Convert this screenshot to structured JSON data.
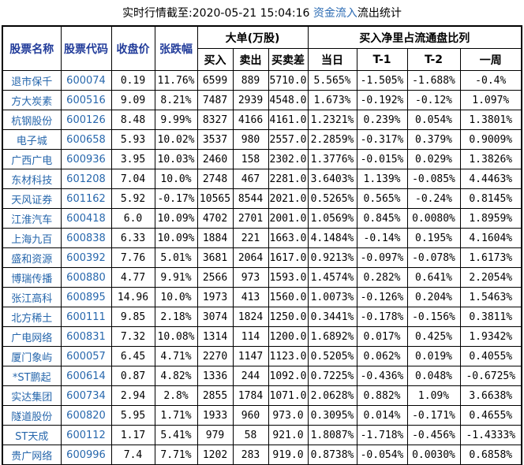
{
  "title": {
    "prefix": "实时行情截至:2020-05-21 15:04:16 ",
    "link": "资金流入",
    "suffix": "流出统计"
  },
  "headers": {
    "stock_name": "股票名称",
    "stock_code": "股票代码",
    "close_price": "收盘价",
    "change_pct": "张跌幅",
    "big_order_group": "大单(万股)",
    "buy": "买入",
    "sell": "卖出",
    "buy_sell_diff": "买卖差",
    "net_ratio_group": "买入净里占流通盘比列",
    "day": "当日",
    "t1": "T-1",
    "t2": "T-2",
    "week": "一周"
  },
  "colors": {
    "header_blue": "#223c9a",
    "cell_link_blue": "#2767ac",
    "title_link_blue": "#2e6db4",
    "border": "#000000",
    "background": "#ffffff"
  },
  "chart_data": {
    "type": "table",
    "title": "实时行情截至:2020-05-21 15:04:16 资金流入流出统计",
    "column_groups": [
      {
        "label": "大单(万股)",
        "columns": [
          "买入",
          "卖出",
          "买卖差"
        ]
      },
      {
        "label": "买入净里占流通盘比列",
        "columns": [
          "当日",
          "T-1",
          "T-2",
          "一周"
        ]
      }
    ],
    "columns": [
      "股票名称",
      "股票代码",
      "收盘价",
      "张跌幅",
      "买入",
      "卖出",
      "买卖差",
      "当日",
      "T-1",
      "T-2",
      "一周"
    ],
    "rows": [
      [
        "退市保千",
        "600074",
        "0.19",
        "11.76%",
        "6599",
        "889",
        "5710.0",
        "5.565%",
        "-1.505%",
        "-1.688%",
        "-0.4%"
      ],
      [
        "方大炭素",
        "600516",
        "9.09",
        "8.21%",
        "7487",
        "2939",
        "4548.0",
        "1.673%",
        "-0.192%",
        "-0.12%",
        "1.097%"
      ],
      [
        "杭钢股份",
        "600126",
        "8.48",
        "9.99%",
        "8327",
        "4166",
        "4161.0",
        "1.2321%",
        "0.239%",
        "0.054%",
        "1.3801%"
      ],
      [
        "电子城",
        "600658",
        "5.93",
        "10.02%",
        "3537",
        "980",
        "2557.0",
        "2.2859%",
        "-0.317%",
        "0.379%",
        "0.9009%"
      ],
      [
        "广西广电",
        "600936",
        "3.95",
        "10.03%",
        "2460",
        "158",
        "2302.0",
        "1.3776%",
        "-0.015%",
        "0.029%",
        "1.3826%"
      ],
      [
        "东材科技",
        "601208",
        "7.04",
        "10.0%",
        "2748",
        "467",
        "2281.0",
        "3.6403%",
        "1.139%",
        "-0.085%",
        "4.4463%"
      ],
      [
        "天风证券",
        "601162",
        "5.92",
        "-0.17%",
        "10565",
        "8544",
        "2021.0",
        "0.5265%",
        "0.565%",
        "-0.24%",
        "0.8145%"
      ],
      [
        "江淮汽车",
        "600418",
        "6.0",
        "10.09%",
        "4702",
        "2701",
        "2001.0",
        "1.0569%",
        "0.845%",
        "0.0080%",
        "1.8959%"
      ],
      [
        "上海九百",
        "600838",
        "6.33",
        "10.09%",
        "1884",
        "221",
        "1663.0",
        "4.1484%",
        "-0.14%",
        "0.195%",
        "4.1604%"
      ],
      [
        "盛和资源",
        "600392",
        "7.76",
        "5.01%",
        "3681",
        "2064",
        "1617.0",
        "0.9213%",
        "-0.097%",
        "-0.078%",
        "1.6173%"
      ],
      [
        "博瑞传播",
        "600880",
        "4.77",
        "9.91%",
        "2566",
        "973",
        "1593.0",
        "1.4574%",
        "0.282%",
        "0.641%",
        "2.2054%"
      ],
      [
        "张江高科",
        "600895",
        "14.96",
        "10.0%",
        "1973",
        "413",
        "1560.0",
        "1.0073%",
        "-0.126%",
        "0.204%",
        "1.5463%"
      ],
      [
        "北方稀土",
        "600111",
        "9.85",
        "2.18%",
        "3074",
        "1824",
        "1250.0",
        "0.3441%",
        "-0.178%",
        "-0.156%",
        "0.3811%"
      ],
      [
        "广电网络",
        "600831",
        "7.32",
        "10.08%",
        "1314",
        "114",
        "1200.0",
        "1.6892%",
        "0.017%",
        "0.425%",
        "1.9342%"
      ],
      [
        "厦门象屿",
        "600057",
        "6.45",
        "4.71%",
        "2270",
        "1147",
        "1123.0",
        "0.5205%",
        "0.062%",
        "0.019%",
        "0.4055%"
      ],
      [
        "*ST鹏起",
        "600614",
        "0.87",
        "4.82%",
        "1336",
        "244",
        "1092.0",
        "0.7225%",
        "-0.436%",
        "0.048%",
        "-0.6725%"
      ],
      [
        "实达集团",
        "600734",
        "2.94",
        "2.8%",
        "2855",
        "1784",
        "1071.0",
        "2.0628%",
        "0.882%",
        "1.09%",
        "3.6638%"
      ],
      [
        "隧道股份",
        "600820",
        "5.95",
        "1.71%",
        "1933",
        "960",
        "973.0",
        "0.3095%",
        "0.014%",
        "-0.171%",
        "0.4655%"
      ],
      [
        "ST天成",
        "600112",
        "1.17",
        "5.41%",
        "979",
        "58",
        "921.0",
        "1.8087%",
        "-1.718%",
        "-0.456%",
        "-1.4333%"
      ],
      [
        "贵广网络",
        "600996",
        "7.4",
        "7.71%",
        "1202",
        "283",
        "919.0",
        "0.8738%",
        "-0.054%",
        "0.0030%",
        "0.6858%"
      ]
    ]
  }
}
